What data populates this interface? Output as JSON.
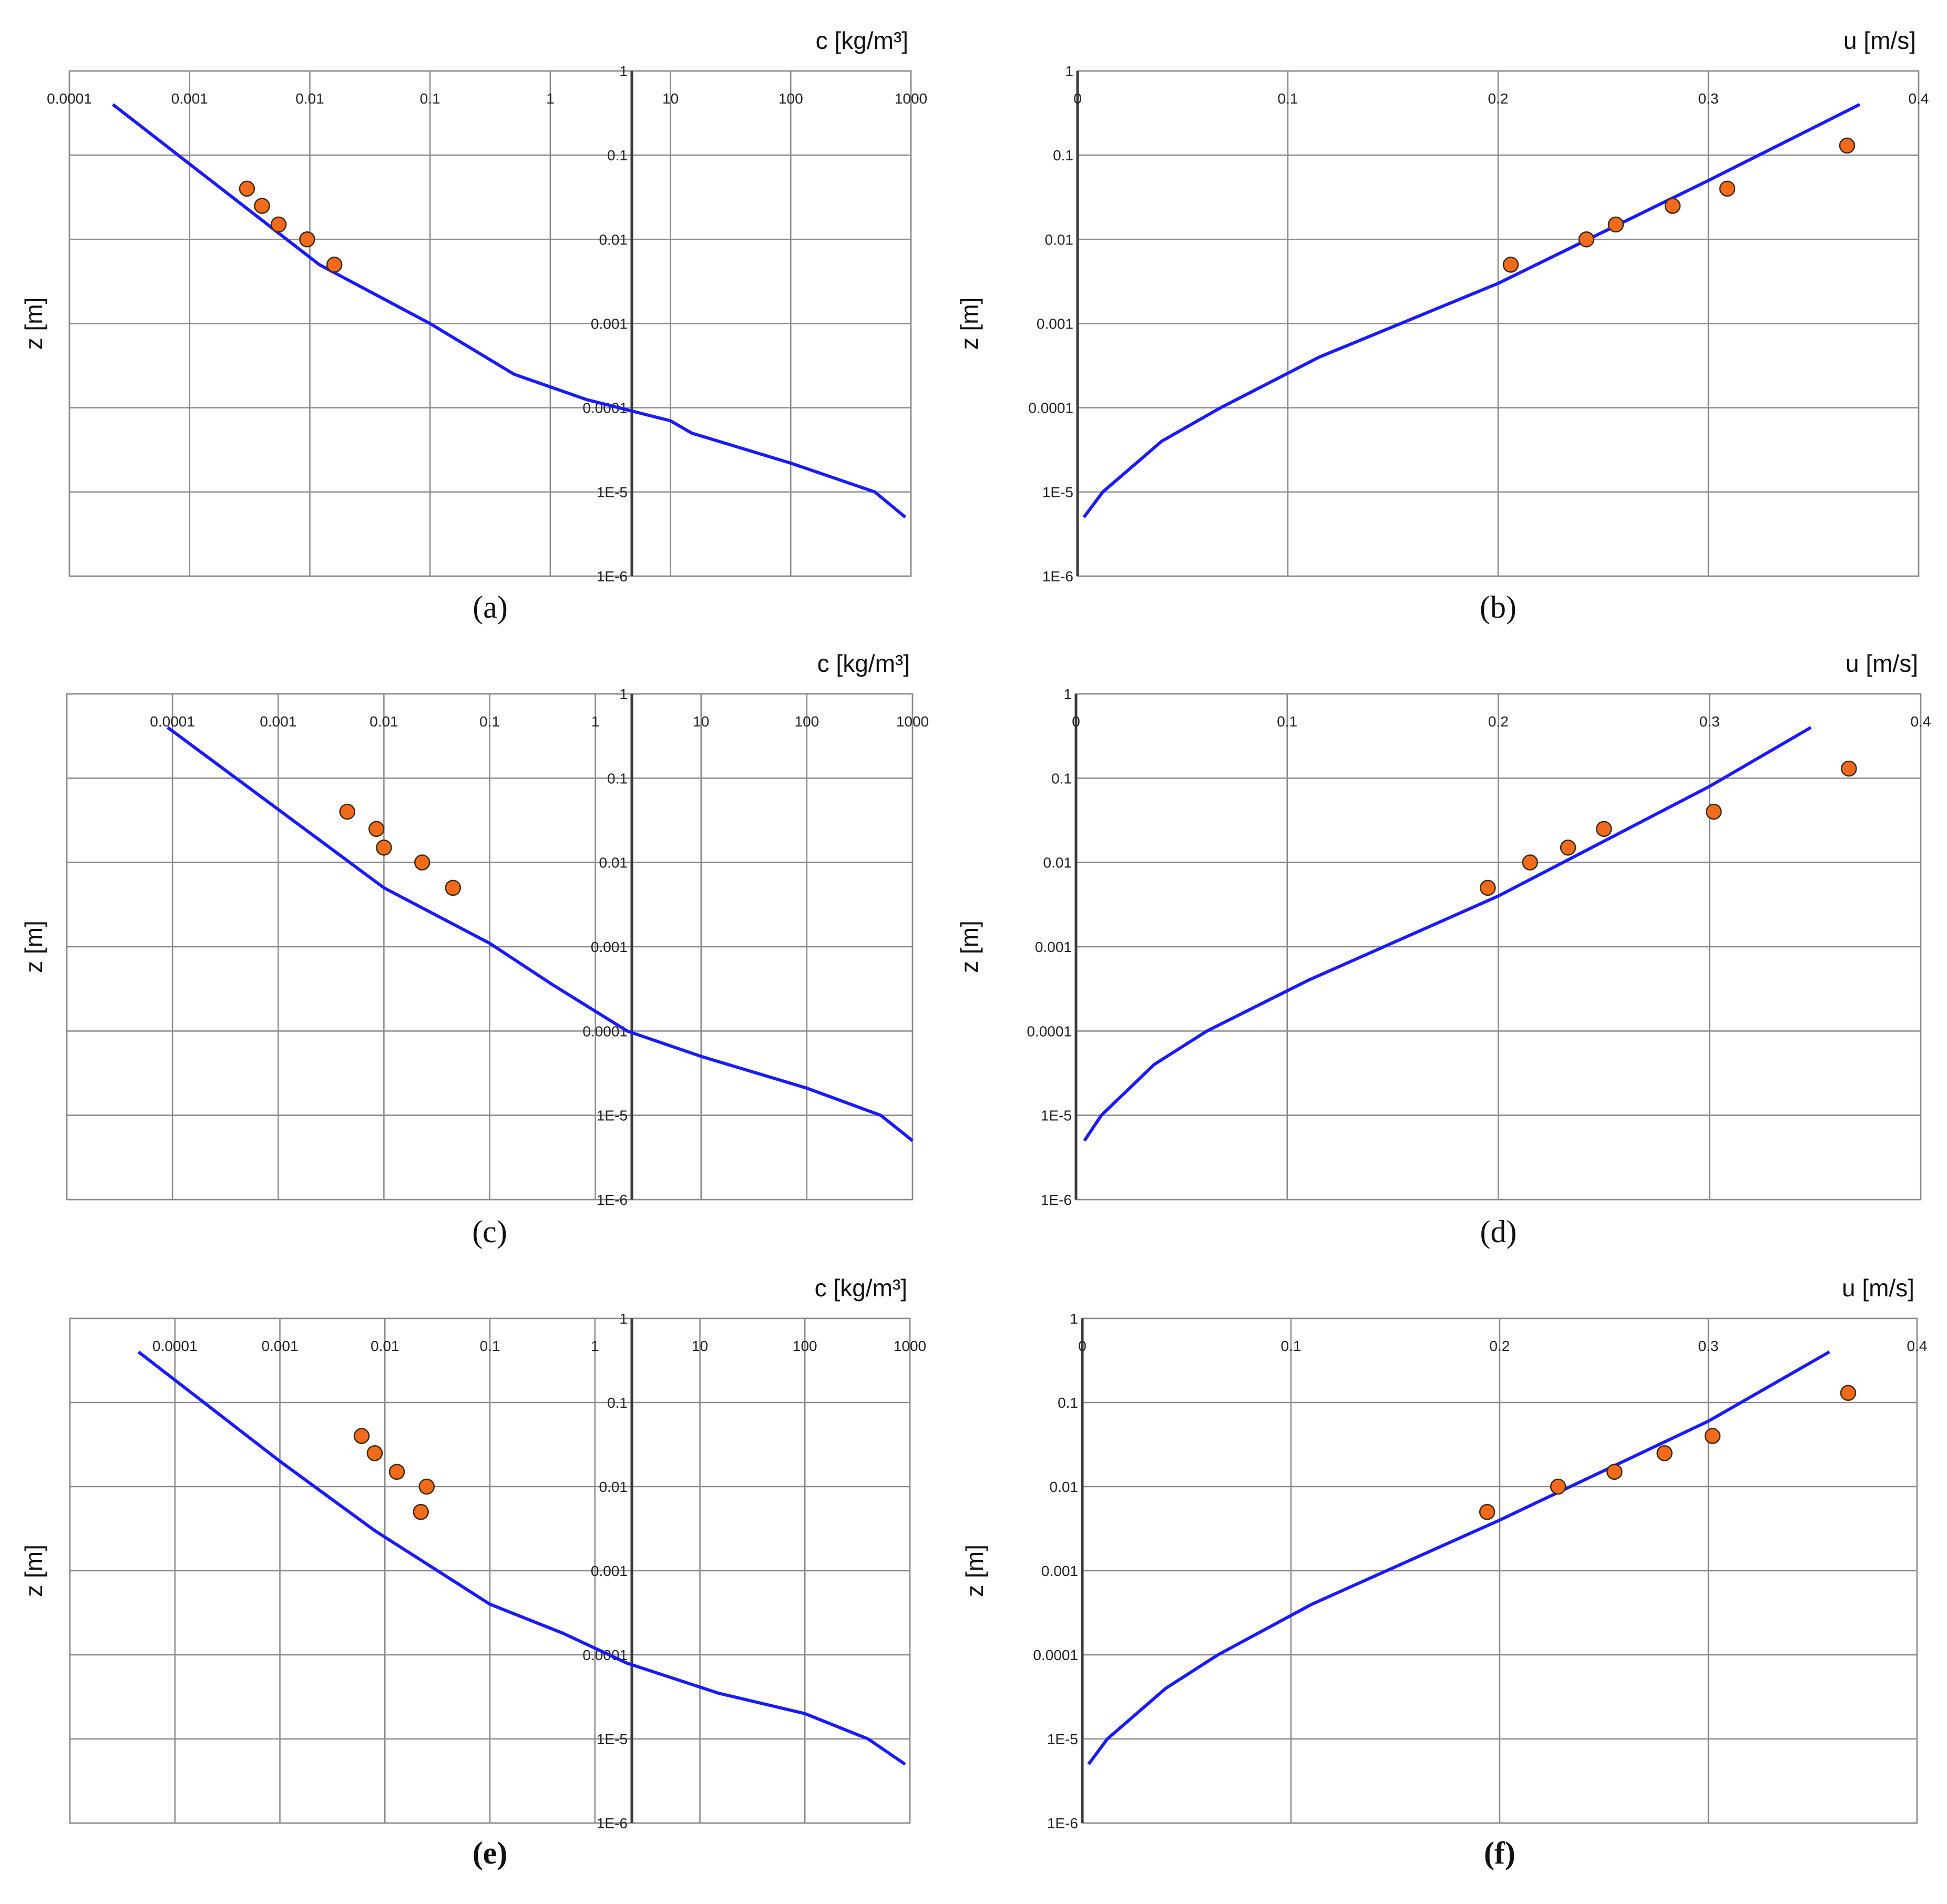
{
  "figure": {
    "colors": {
      "model_line": "#1a1aff",
      "observed_points": "#f26b1d",
      "grid": "#8a8a8a",
      "axis": "#3a3a3a"
    },
    "icons": []
  },
  "chart_data": [
    {
      "panel": "a",
      "caption": "(a)",
      "type": "line",
      "title": "c [kg/m³]",
      "xlabel": "c [kg/m³]",
      "ylabel": "z [m]",
      "x_scale": "log",
      "y_scale": "log",
      "xlim": [
        0.0001,
        1000
      ],
      "ylim": [
        1e-06,
        1
      ],
      "x_tick_labels": [
        "0.0001",
        "0.001",
        "0.01",
        "0.1",
        "1",
        "10",
        "100",
        "1000"
      ],
      "y_tick_labels": [
        "1",
        "0.1",
        "0.01",
        "0.001",
        "0.0001",
        "1E-5",
        "1E-6"
      ],
      "grid": true,
      "series": [
        {
          "kind": "line",
          "points": [
            [
              0.00023,
              0.4
            ],
            [
              0.012,
              0.005
            ],
            [
              0.1,
              0.001
            ],
            [
              0.5,
              0.00025
            ],
            [
              2,
              0.000125
            ],
            [
              10,
              7e-05
            ],
            [
              15,
              5e-05
            ],
            [
              100,
              2.2e-05
            ],
            [
              500,
              1e-05
            ],
            [
              900,
              5e-06
            ]
          ]
        },
        {
          "kind": "scatter",
          "points": [
            [
              0.003,
              0.04
            ],
            [
              0.004,
              0.025
            ],
            [
              0.0055,
              0.015
            ],
            [
              0.0095,
              0.01
            ],
            [
              0.016,
              0.005
            ]
          ]
        }
      ]
    },
    {
      "panel": "b",
      "caption": "(b)",
      "type": "line",
      "title": "u [m/s]",
      "xlabel": "u [m/s]",
      "ylabel": "z [m]",
      "x_scale": "linear",
      "y_scale": "log",
      "xlim": [
        0,
        0.4
      ],
      "ylim": [
        1e-06,
        1
      ],
      "x_tick_labels": [
        "0",
        "0.1",
        "0.2",
        "0.3",
        "0.4"
      ],
      "y_tick_labels": [
        "1",
        "0.1",
        "0.01",
        "0.001",
        "0.0001",
        "1E-5",
        "1E-6"
      ],
      "grid": true,
      "series": [
        {
          "kind": "line",
          "points": [
            [
              0.003,
              5e-06
            ],
            [
              0.012,
              1e-05
            ],
            [
              0.04,
              4e-05
            ],
            [
              0.068,
              0.0001
            ],
            [
              0.115,
              0.0004
            ],
            [
              0.2,
              0.003
            ],
            [
              0.3,
              0.05
            ],
            [
              0.372,
              0.4
            ]
          ]
        },
        {
          "kind": "scatter",
          "points": [
            [
              0.206,
              0.005
            ],
            [
              0.242,
              0.01
            ],
            [
              0.256,
              0.015
            ],
            [
              0.283,
              0.025
            ],
            [
              0.309,
              0.04
            ],
            [
              0.366,
              0.13
            ]
          ]
        }
      ]
    },
    {
      "panel": "c",
      "caption": "(c)",
      "type": "line",
      "title": "c [kg/m³]",
      "xlabel": "c [kg/m³]",
      "ylabel": "z [m]",
      "x_scale": "log",
      "y_scale": "log",
      "xlim": [
        1e-05,
        1000
      ],
      "ylim": [
        1e-06,
        1
      ],
      "x_tick_labels": [
        "0.0001",
        "0.001",
        "0.01",
        "0.1",
        "1",
        "10",
        "100",
        "1000"
      ],
      "y_tick_labels": [
        "1",
        "0.1",
        "0.01",
        "0.001",
        "0.0001",
        "1E-5",
        "1E-6"
      ],
      "grid": true,
      "series": [
        {
          "kind": "line",
          "points": [
            [
              9e-05,
              0.4
            ],
            [
              0.01,
              0.005
            ],
            [
              0.1,
              0.0011
            ],
            [
              0.4,
              0.00035
            ],
            [
              2,
              0.0001
            ],
            [
              10,
              5e-05
            ],
            [
              100,
              2.1e-05
            ],
            [
              500,
              1e-05
            ],
            [
              1000,
              5e-06
            ]
          ]
        },
        {
          "kind": "scatter",
          "points": [
            [
              0.0045,
              0.04
            ],
            [
              0.0085,
              0.025
            ],
            [
              0.01,
              0.015
            ],
            [
              0.023,
              0.01
            ],
            [
              0.045,
              0.005
            ]
          ]
        }
      ]
    },
    {
      "panel": "d",
      "caption": "(d)",
      "type": "line",
      "title": "u [m/s]",
      "xlabel": "u [m/s]",
      "ylabel": "z [m]",
      "x_scale": "linear",
      "y_scale": "log",
      "xlim": [
        0,
        0.4
      ],
      "ylim": [
        1e-06,
        1
      ],
      "x_tick_labels": [
        "0",
        "0.1",
        "0.2",
        "0.3",
        "0.4"
      ],
      "y_tick_labels": [
        "1",
        "0.1",
        "0.01",
        "0.001",
        "0.0001",
        "1E-5",
        "1E-6"
      ],
      "grid": true,
      "series": [
        {
          "kind": "line",
          "points": [
            [
              0.004,
              5e-06
            ],
            [
              0.012,
              1e-05
            ],
            [
              0.037,
              4e-05
            ],
            [
              0.062,
              0.0001
            ],
            [
              0.11,
              0.0004
            ],
            [
              0.2,
              0.004
            ],
            [
              0.3,
              0.08
            ],
            [
              0.348,
              0.4
            ]
          ]
        },
        {
          "kind": "scatter",
          "points": [
            [
              0.195,
              0.005
            ],
            [
              0.215,
              0.01
            ],
            [
              0.233,
              0.015
            ],
            [
              0.25,
              0.025
            ],
            [
              0.302,
              0.04
            ],
            [
              0.366,
              0.13
            ]
          ]
        }
      ]
    },
    {
      "panel": "e",
      "caption": "(e)",
      "type": "line",
      "title": "c [kg/m³]",
      "xlabel": "c [kg/m³]",
      "ylabel": "z [m]",
      "x_scale": "log",
      "y_scale": "log",
      "xlim": [
        1e-05,
        1000
      ],
      "ylim": [
        1e-06,
        1
      ],
      "x_tick_labels": [
        "0.0001",
        "0.001",
        "0.01",
        "0.1",
        "1",
        "10",
        "100",
        "1000"
      ],
      "y_tick_labels": [
        "1",
        "0.1",
        "0.01",
        "0.001",
        "0.0001",
        "1E-5",
        "1E-6"
      ],
      "grid": true,
      "series": [
        {
          "kind": "line",
          "points": [
            [
              4.5e-05,
              0.4
            ],
            [
              0.001,
              0.02
            ],
            [
              0.008,
              0.003
            ],
            [
              0.1,
              0.0004
            ],
            [
              0.5,
              0.00018
            ],
            [
              2,
              8e-05
            ],
            [
              15,
              3.5e-05
            ],
            [
              100,
              2e-05
            ],
            [
              400,
              1e-05
            ],
            [
              900,
              5e-06
            ]
          ]
        },
        {
          "kind": "scatter",
          "points": [
            [
              0.006,
              0.04
            ],
            [
              0.008,
              0.025
            ],
            [
              0.013,
              0.015
            ],
            [
              0.025,
              0.01
            ],
            [
              0.022,
              0.005
            ]
          ]
        }
      ]
    },
    {
      "panel": "f",
      "caption": "(f)",
      "type": "line",
      "title": "u [m/s]",
      "xlabel": "u [m/s]",
      "ylabel": "z [m]",
      "x_scale": "linear",
      "y_scale": "log",
      "xlim": [
        0,
        0.4
      ],
      "ylim": [
        1e-06,
        1
      ],
      "x_tick_labels": [
        "0",
        "0.1",
        "0.2",
        "0.3",
        "0.4"
      ],
      "y_tick_labels": [
        "1",
        "0.1",
        "0.01",
        "0.001",
        "0.0001",
        "1E-5",
        "1E-6"
      ],
      "grid": true,
      "series": [
        {
          "kind": "line",
          "points": [
            [
              0.003,
              5e-06
            ],
            [
              0.012,
              1e-05
            ],
            [
              0.04,
              4e-05
            ],
            [
              0.065,
              0.0001
            ],
            [
              0.11,
              0.0004
            ],
            [
              0.2,
              0.004
            ],
            [
              0.3,
              0.06
            ],
            [
              0.358,
              0.4
            ]
          ]
        },
        {
          "kind": "scatter",
          "points": [
            [
              0.194,
              0.005
            ],
            [
              0.228,
              0.01
            ],
            [
              0.255,
              0.015
            ],
            [
              0.279,
              0.025
            ],
            [
              0.302,
              0.04
            ],
            [
              0.367,
              0.13
            ]
          ]
        }
      ]
    }
  ]
}
